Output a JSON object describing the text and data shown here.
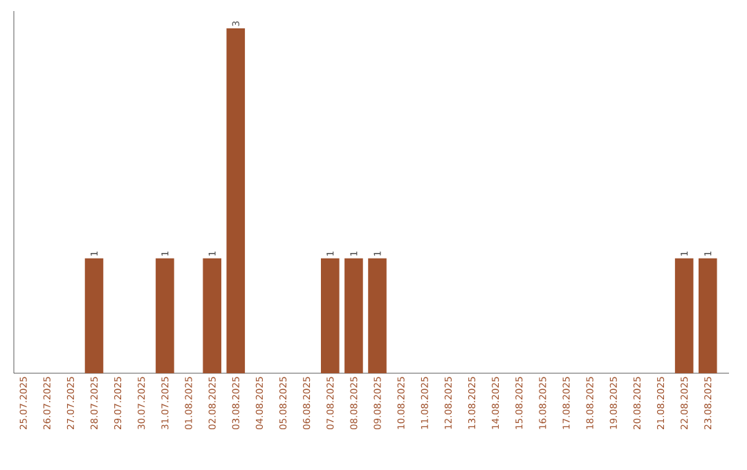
{
  "chart_data": {
    "type": "bar",
    "categories": [
      "25.07.2025",
      "26.07.2025",
      "27.07.2025",
      "28.07.2025",
      "29.07.2025",
      "30.07.2025",
      "31.07.2025",
      "01.08.2025",
      "02.08.2025",
      "03.08.2025",
      "04.08.2025",
      "05.08.2025",
      "06.08.2025",
      "07.08.2025",
      "08.08.2025",
      "09.08.2025",
      "10.08.2025",
      "11.08.2025",
      "12.08.2025",
      "13.08.2025",
      "14.08.2025",
      "15.08.2025",
      "16.08.2025",
      "17.08.2025",
      "18.08.2025",
      "19.08.2025",
      "20.08.2025",
      "21.08.2025",
      "22.08.2025",
      "23.08.2025"
    ],
    "values": [
      0,
      0,
      0,
      1,
      0,
      0,
      1,
      0,
      1,
      3,
      0,
      0,
      0,
      1,
      1,
      1,
      0,
      0,
      0,
      0,
      0,
      0,
      0,
      0,
      0,
      0,
      0,
      0,
      1,
      1
    ],
    "value_labels": [
      null,
      null,
      null,
      "1",
      null,
      null,
      "1",
      null,
      "1",
      "3",
      null,
      null,
      null,
      "1",
      "1",
      "1",
      null,
      null,
      null,
      null,
      null,
      null,
      null,
      null,
      null,
      null,
      null,
      null,
      "1",
      "1"
    ],
    "color": "#a0522d",
    "tick_labels": "x"
  }
}
